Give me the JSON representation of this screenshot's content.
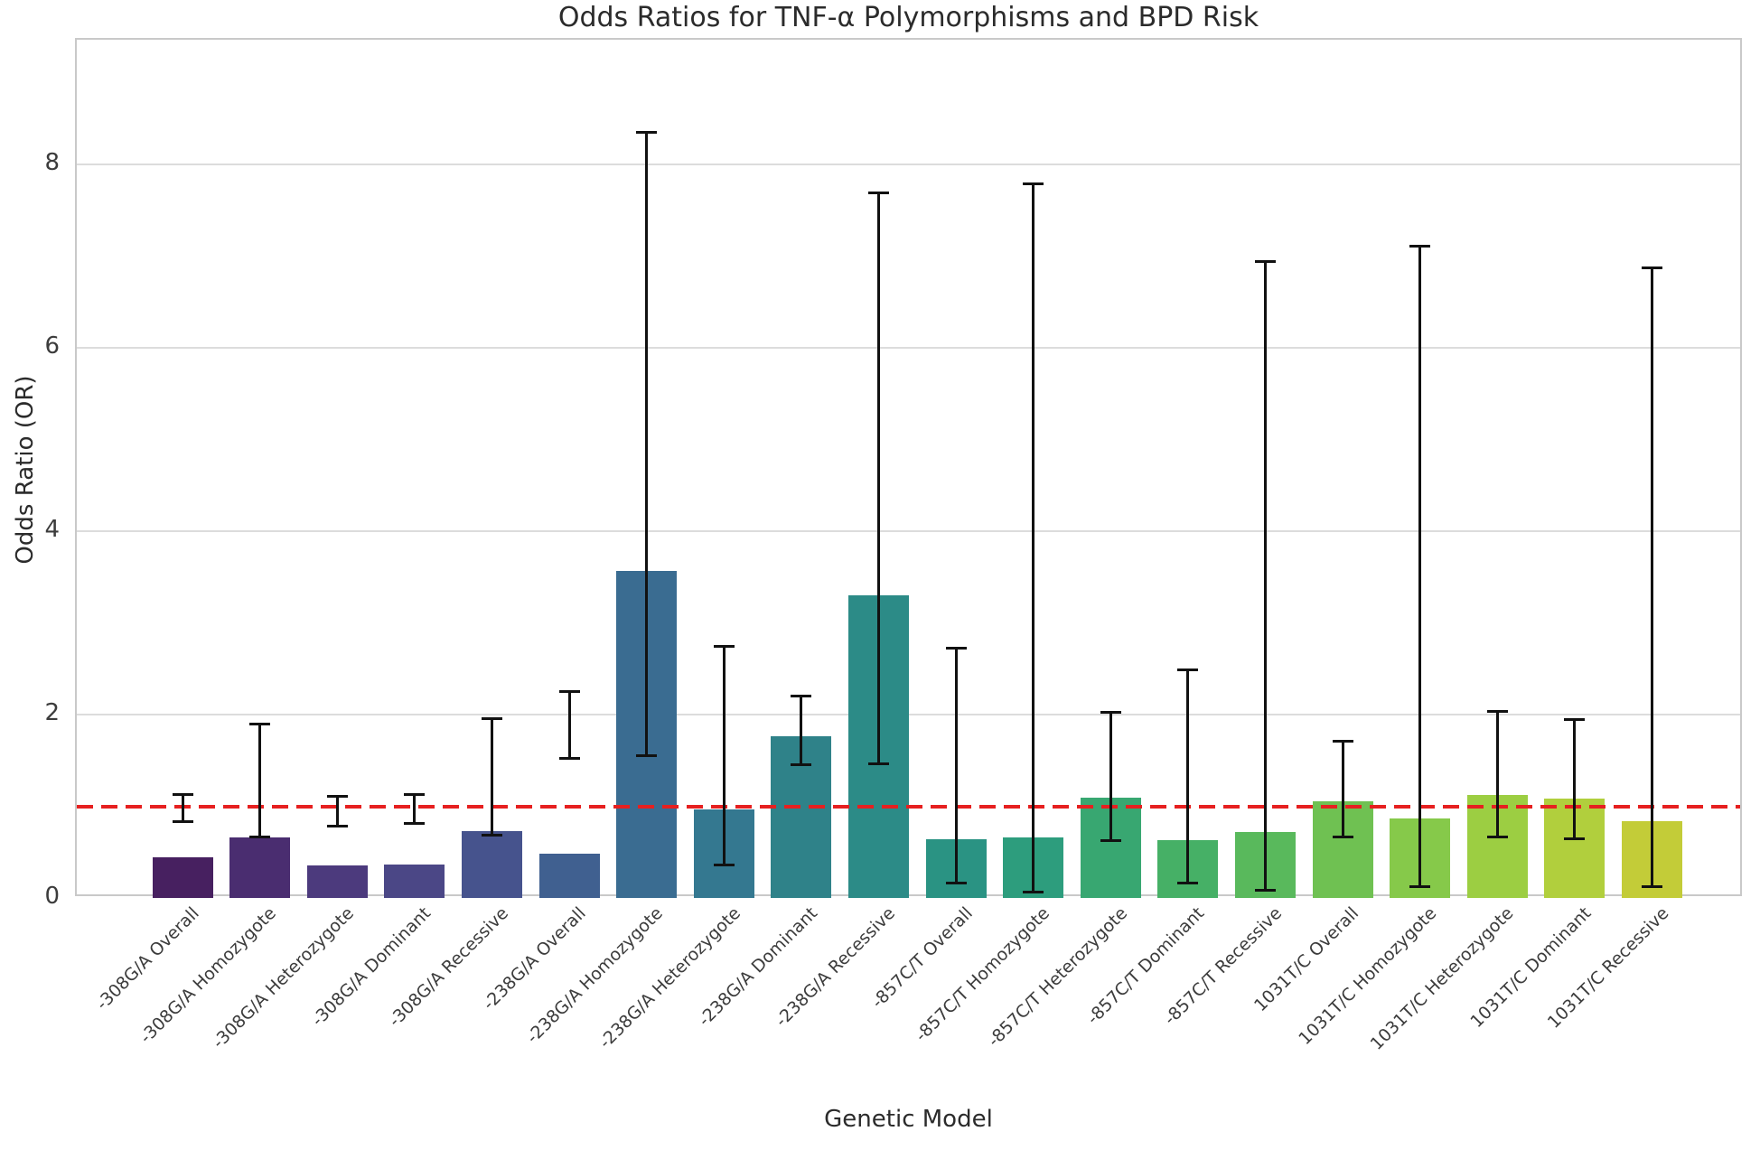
{
  "chart_data": {
    "type": "bar",
    "title": "Odds Ratios for TNF-α Polymorphisms and BPD Risk",
    "xlabel": "Genetic Model",
    "ylabel": "Odds Ratio (OR)",
    "ylim": [
      0,
      9.36
    ],
    "yticks": [
      0,
      2,
      4,
      6,
      8
    ],
    "grid": "horizontal-only",
    "legend": "none",
    "reference_line": {
      "y": 1.0,
      "color": "#e62020",
      "style": "dashed",
      "meaning": "OR = 1 (no effect)"
    },
    "error_bar_color": "#111111",
    "categories": [
      "-308G/A Overall",
      "-308G/A Homozygote",
      "-308G/A Heterozygote",
      "-308G/A Dominant",
      "-308G/A Recessive",
      "-238G/A Overall",
      "-238G/A Homozygote",
      "-238G/A Heterozygote",
      "-238G/A Dominant",
      "-238G/A Recessive",
      "-857C/T Overall",
      "-857C/T Homozygote",
      "-857C/T Heterozygote",
      "-857C/T Dominant",
      "-857C/T Recessive",
      "1031T/C Overall",
      "1031T/C Homozygote",
      "1031T/C Heterozygote",
      "1031T/C Dominant",
      "1031T/C Recessive"
    ],
    "series": [
      {
        "name": "Odds Ratio",
        "values": [
          0.44,
          0.66,
          0.35,
          0.36,
          0.73,
          0.48,
          3.57,
          0.97,
          1.76,
          3.3,
          0.64,
          0.66,
          1.09,
          0.63,
          0.72,
          1.05,
          0.87,
          1.12,
          1.08,
          0.84
        ]
      }
    ],
    "ci_low": [
      0.82,
      0.65,
      0.77,
      0.8,
      0.67,
      1.51,
      1.54,
      0.34,
      1.44,
      1.45,
      0.15,
      0.05,
      0.61,
      0.15,
      0.07,
      0.65,
      0.11,
      0.65,
      0.63,
      0.11
    ],
    "ci_high": [
      1.14,
      1.91,
      1.12,
      1.14,
      1.97,
      2.27,
      8.36,
      2.76,
      2.22,
      7.7,
      2.74,
      7.8,
      2.04,
      2.5,
      6.96,
      1.72,
      7.12,
      2.05,
      1.96,
      6.89
    ],
    "bar_colors": [
      "#472060",
      "#4a2d70",
      "#4c3a7d",
      "#4b4786",
      "#46538d",
      "#406090",
      "#3a6c91",
      "#347890",
      "#2f8289",
      "#2c8b87",
      "#2a9383",
      "#2d9d7d",
      "#38a771",
      "#46b066",
      "#59b95c",
      "#6fc152",
      "#86c94a",
      "#9cce42",
      "#b1cf3d",
      "#c3cc38"
    ]
  }
}
